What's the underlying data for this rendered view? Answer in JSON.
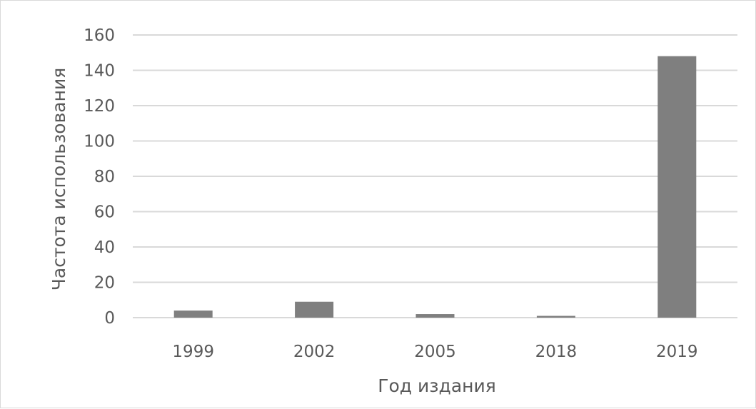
{
  "chart_data": {
    "type": "bar",
    "title": "",
    "categories": [
      "1999",
      "2002",
      "2005",
      "2018",
      "2019"
    ],
    "values": [
      4,
      9,
      2,
      1,
      148
    ],
    "xlabel": "Год издания",
    "ylabel": "Частота использования",
    "ylim": [
      0,
      160
    ],
    "yticks": [
      "0",
      "20",
      "40",
      "60",
      "80",
      "100",
      "120",
      "140",
      "160"
    ],
    "grid": true,
    "legend": "none"
  },
  "colors": {
    "bar": "#7f7f7f",
    "grid": "#d9d9d9",
    "text": "#595959"
  }
}
